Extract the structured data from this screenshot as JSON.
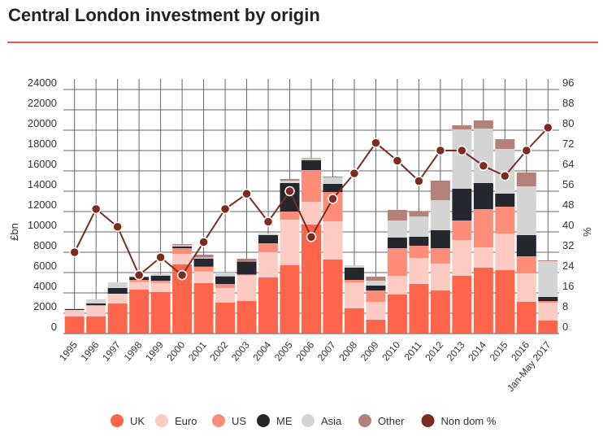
{
  "chart_data": {
    "type": "bar",
    "stacked": true,
    "title": "Central London investment by origin",
    "ylabel": "£bn",
    "y2label": "%",
    "ylim": [
      0,
      24000
    ],
    "y2lim": [
      0,
      96
    ],
    "yticks": [
      0,
      2000,
      4000,
      6000,
      8000,
      10000,
      12000,
      14000,
      16000,
      18000,
      20000,
      22000,
      24000
    ],
    "y2ticks": [
      0,
      8,
      16,
      24,
      32,
      40,
      48,
      56,
      64,
      72,
      80,
      88,
      96
    ],
    "grid": true,
    "legend_position": "bottom",
    "categories": [
      "1995",
      "1996",
      "1997",
      "1998",
      "1999",
      "2000",
      "2001",
      "2002",
      "2003",
      "2004",
      "2005",
      "2006",
      "2007",
      "2008",
      "2009",
      "2010",
      "2011",
      "2012",
      "2013",
      "2014",
      "2015",
      "2016",
      "Jan-May 2017"
    ],
    "series": [
      {
        "name": "UK",
        "color": "#fe654a",
        "values": [
          1680,
          1680,
          2960,
          4320,
          4080,
          6800,
          4960,
          3040,
          3200,
          5520,
          6720,
          10720,
          7280,
          2480,
          1360,
          3840,
          4880,
          4240,
          5680,
          6480,
          6240,
          3120,
          1280
        ]
      },
      {
        "name": "Euro",
        "color": "#fdcbc2",
        "values": [
          640,
          1060,
          960,
          750,
          910,
          1040,
          1140,
          1440,
          2530,
          2480,
          4480,
          2240,
          3760,
          2560,
          1760,
          1840,
          2560,
          2640,
          3520,
          2000,
          3600,
          2800,
          1760
        ]
      },
      {
        "name": "US",
        "color": "#fd8d78",
        "values": [
          0,
          50,
          0,
          210,
          210,
          560,
          480,
          400,
          80,
          880,
          800,
          3120,
          2880,
          240,
          1120,
          2720,
          1200,
          1520,
          1920,
          3760,
          2640,
          1680,
          160
        ]
      },
      {
        "name": "ME",
        "color": "#24272e",
        "values": [
          110,
          170,
          560,
          290,
          500,
          160,
          800,
          750,
          1260,
          800,
          2800,
          960,
          800,
          1200,
          480,
          1040,
          880,
          1760,
          3120,
          2560,
          1280,
          2080,
          400
        ]
      },
      {
        "name": "Asia",
        "color": "#d4d4d5",
        "values": [
          20,
          420,
          560,
          80,
          140,
          130,
          110,
          370,
          0,
          160,
          240,
          130,
          640,
          240,
          480,
          1680,
          2000,
          2960,
          5840,
          5360,
          4400,
          4800,
          3520
        ]
      },
      {
        "name": "Other",
        "color": "#b4817a",
        "values": [
          0,
          0,
          0,
          0,
          0,
          110,
          270,
          0,
          290,
          0,
          160,
          80,
          80,
          0,
          400,
          1040,
          480,
          1920,
          400,
          800,
          960,
          1360,
          80
        ]
      }
    ],
    "line_series": {
      "name": "Non dom %",
      "color": "#7b2b20",
      "axis": "right",
      "values": [
        32,
        49,
        42,
        23,
        30,
        23,
        36,
        49,
        55,
        44,
        56,
        38,
        53,
        63,
        75,
        68,
        60,
        72,
        72,
        66,
        62,
        72,
        81
      ]
    }
  }
}
